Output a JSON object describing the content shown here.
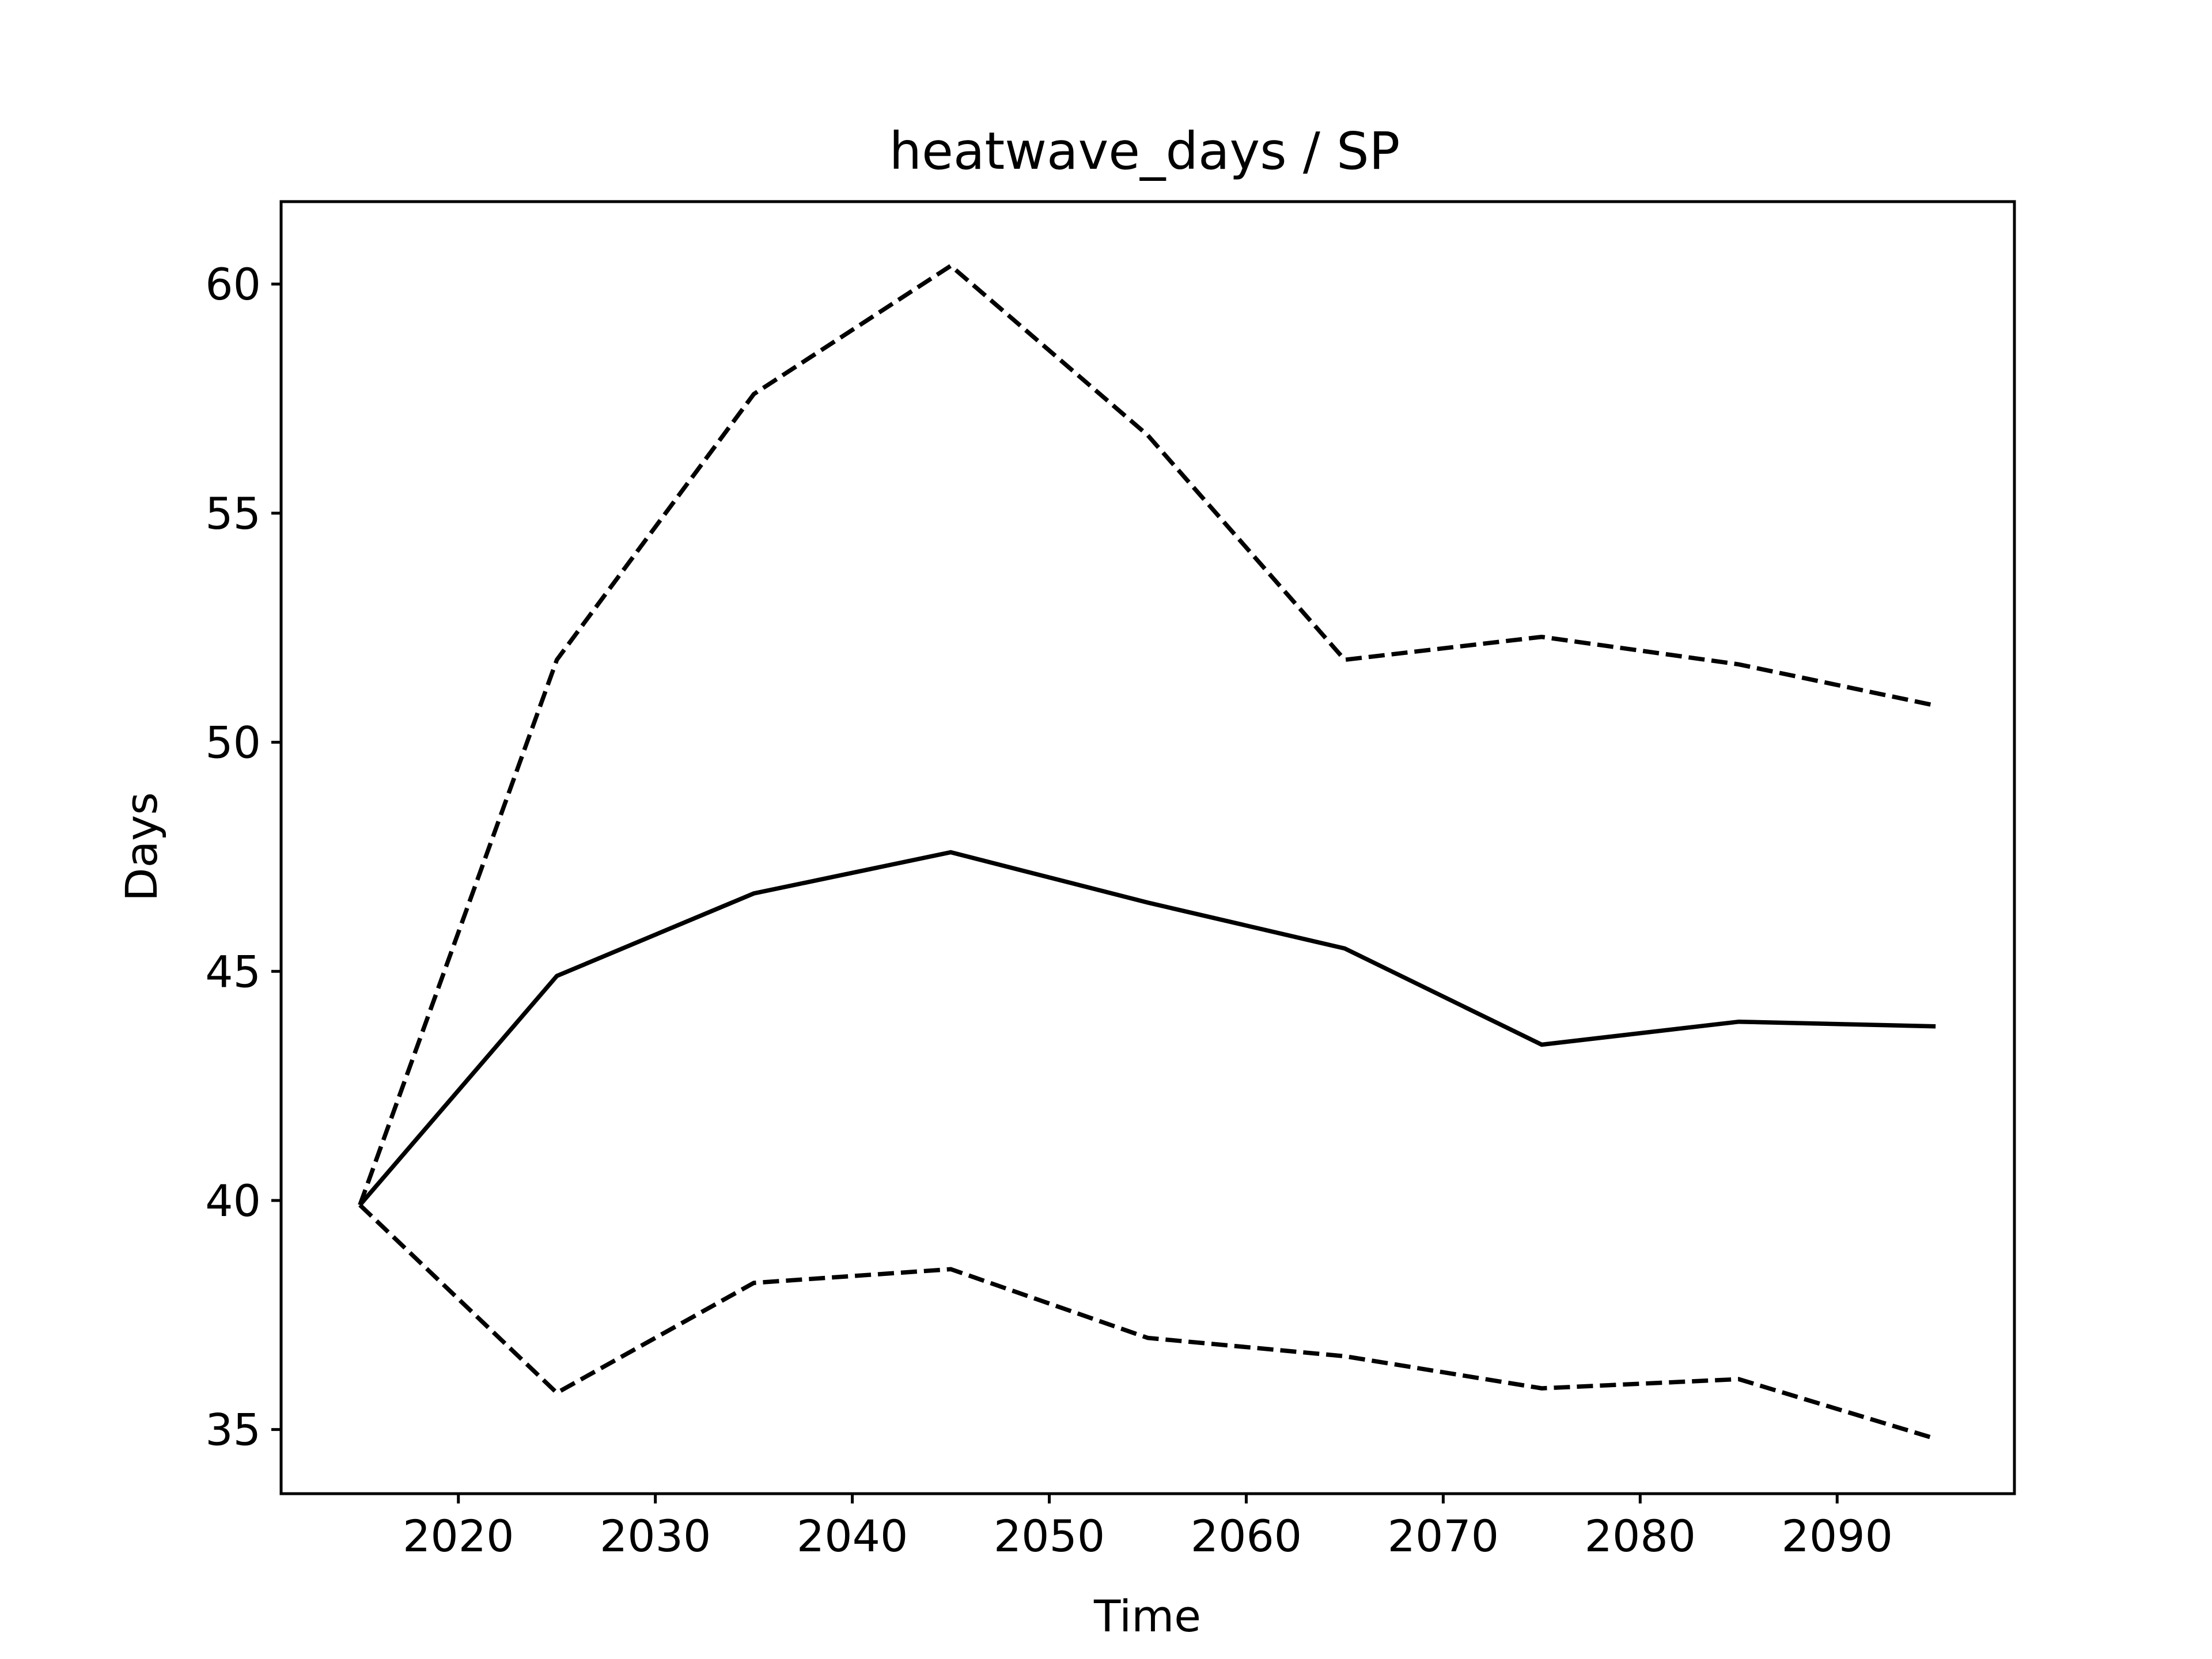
{
  "chart_data": {
    "type": "line",
    "title": "heatwave_days / SP",
    "xlabel": "Time",
    "ylabel": "Days",
    "xlim": [
      2011,
      2099
    ],
    "ylim": [
      33.6,
      61.8
    ],
    "xticks": [
      2020,
      2030,
      2040,
      2050,
      2060,
      2070,
      2080,
      2090
    ],
    "yticks": [
      35,
      40,
      45,
      50,
      55,
      60
    ],
    "grid": false,
    "legend": false,
    "x": [
      2015,
      2025,
      2035,
      2045,
      2055,
      2065,
      2075,
      2085,
      2095
    ],
    "series": [
      {
        "line_style": "dashed",
        "color": "#000000",
        "values": [
          39.9,
          51.8,
          57.6,
          60.4,
          56.7,
          51.8,
          52.3,
          51.7,
          50.8
        ]
      },
      {
        "line_style": "solid",
        "color": "#000000",
        "values": [
          39.9,
          44.9,
          46.7,
          47.6,
          46.5,
          45.5,
          43.4,
          43.9,
          43.8
        ]
      },
      {
        "line_style": "dashed",
        "color": "#000000",
        "values": [
          39.9,
          35.8,
          38.2,
          38.5,
          37.0,
          36.6,
          35.9,
          36.1,
          34.8
        ]
      }
    ]
  }
}
